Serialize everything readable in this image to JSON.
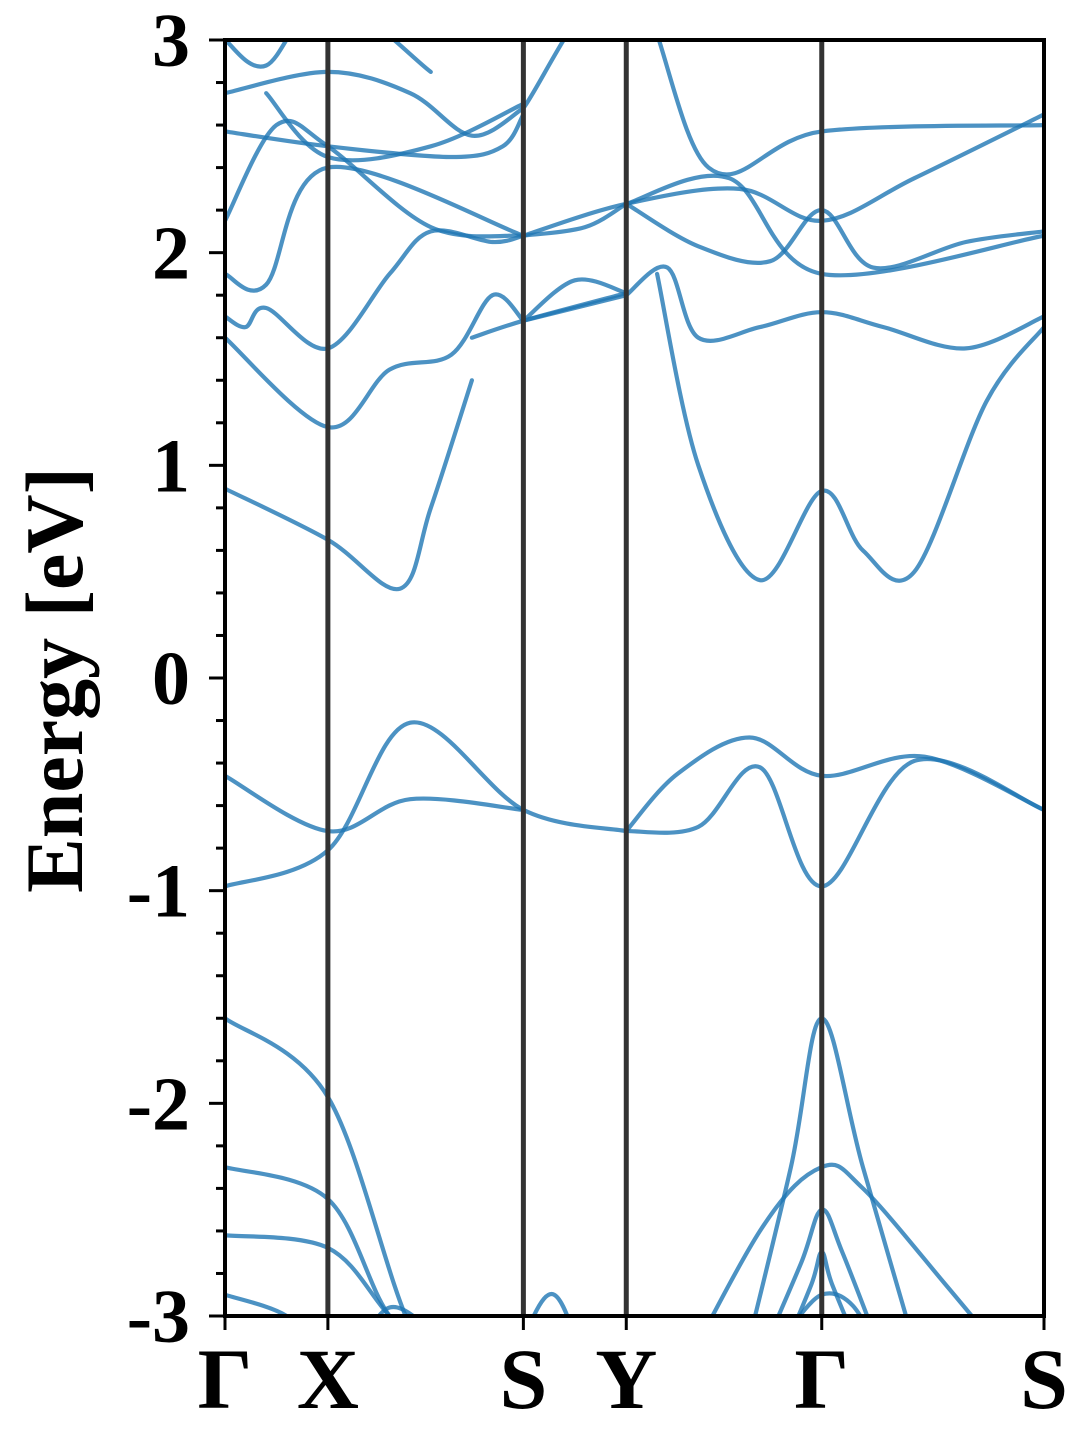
{
  "chart_data": {
    "type": "line",
    "ylabel": "Energy [eV]",
    "xlabel": "",
    "title": "",
    "ylim": [
      -3,
      3
    ],
    "yticks": [
      -3,
      -2,
      -1,
      0,
      1,
      2,
      3
    ],
    "ytick_labels": [
      "-3",
      "-2",
      "-1",
      "0",
      "1",
      "2",
      "3"
    ],
    "minor_ytick_step": 0.2,
    "kpath_labels": [
      "Γ",
      "X",
      "S",
      "Y",
      "Γ",
      "S"
    ],
    "kpath_positions": [
      0,
      0.5,
      1.45,
      1.95,
      2.9,
      3.98
    ],
    "grid": false,
    "legend": "none",
    "line_color": "#1f77b4",
    "vline_color": "#333333",
    "series": [
      {
        "x": [
          0,
          0.5,
          0.9,
          1.45
        ],
        "y": [
          -0.46,
          -0.72,
          -0.57,
          -0.62
        ]
      },
      {
        "x": [
          0,
          0.5,
          0.9,
          1.45,
          1.95
        ],
        "y": [
          -0.98,
          -0.81,
          -0.21,
          -0.62,
          -0.72
        ]
      },
      {
        "x": [
          1.95,
          2.2,
          2.55,
          2.9,
          3.4,
          3.98
        ],
        "y": [
          -0.72,
          -0.45,
          -0.28,
          -0.46,
          -0.37,
          -0.62
        ]
      },
      {
        "x": [
          1.95,
          2.3,
          2.6,
          2.9,
          3.35,
          3.98
        ],
        "y": [
          -0.72,
          -0.7,
          -0.42,
          -0.98,
          -0.39,
          -0.62
        ]
      },
      {
        "x": [
          0,
          0.5,
          0.8,
          1.1,
          1.4,
          1.5,
          1.6,
          1.7,
          1.8,
          2.0,
          2.2
        ],
        "y": [
          -2.3,
          -2.45,
          -3.0,
          -3.2,
          -3.3,
          -3.0,
          -2.9,
          -3.1,
          -3.5,
          -3.4,
          -3.2
        ]
      },
      {
        "x": [
          0,
          0.5,
          0.8,
          1.1,
          1.4
        ],
        "y": [
          -2.62,
          -2.68,
          -3.0,
          -3.3,
          -3.6
        ]
      },
      {
        "x": [
          0,
          0.3,
          0.5,
          0.9,
          1.1
        ],
        "y": [
          -2.9,
          -3.0,
          -3.2,
          -3.5,
          -3.7
        ]
      },
      {
        "x": [
          0.25,
          0.5,
          0.8,
          1.2
        ],
        "y": [
          -3.6,
          -3.5,
          -2.96,
          -3.3
        ]
      },
      {
        "x": [
          0,
          0.5,
          0.9,
          1.2,
          1.5
        ],
        "y": [
          -1.6,
          -1.97,
          -3.05,
          -3.4,
          -3.6
        ]
      },
      {
        "x": [
          2.5,
          2.75,
          2.9,
          3.1,
          3.4
        ],
        "y": [
          -3.3,
          -2.3,
          -1.6,
          -2.3,
          -3.3
        ]
      },
      {
        "x": [
          2.1,
          2.6,
          2.9,
          3.1,
          3.5,
          3.8
        ],
        "y": [
          -3.5,
          -2.6,
          -2.3,
          -2.4,
          -2.85,
          -3.2
        ]
      },
      {
        "x": [
          2.6,
          2.8,
          2.9,
          3.0,
          3.2
        ],
        "y": [
          -3.2,
          -2.75,
          -2.5,
          -2.7,
          -3.2
        ]
      },
      {
        "x": [
          2.7,
          2.85,
          2.9,
          2.95,
          3.1
        ],
        "y": [
          -3.2,
          -2.85,
          -2.7,
          -2.85,
          -3.2
        ]
      },
      {
        "x": [
          2.75,
          2.9,
          3.05,
          3.2
        ],
        "y": [
          -3.05,
          -2.9,
          -2.95,
          -3.2
        ]
      },
      {
        "x": [
          0,
          0.5,
          0.85,
          1.0,
          1.2
        ],
        "y": [
          0.89,
          0.65,
          0.42,
          0.8,
          1.4
        ]
      },
      {
        "x": [
          1.2,
          1.45,
          1.95
        ],
        "y": [
          1.6,
          1.68,
          1.81
        ]
      },
      {
        "x": [
          1.45,
          1.7,
          1.95
        ],
        "y": [
          1.68,
          1.87,
          1.81
        ]
      },
      {
        "x": [
          2.1,
          2.3,
          2.6,
          2.9,
          3.1,
          3.35,
          3.7,
          3.98
        ],
        "y": [
          1.9,
          1.0,
          0.46,
          0.88,
          0.6,
          0.5,
          1.3,
          1.65
        ]
      },
      {
        "x": [
          0,
          0.5,
          0.8,
          1.1,
          1.3,
          1.45
        ],
        "y": [
          1.6,
          1.18,
          1.45,
          1.52,
          1.8,
          1.68
        ]
      },
      {
        "x": [
          1.45,
          1.95
        ],
        "y": [
          1.68,
          1.8
        ]
      },
      {
        "x": [
          1.95,
          2.15,
          2.3,
          2.6,
          2.9,
          3.2,
          3.6,
          3.98
        ],
        "y": [
          1.8,
          1.93,
          1.6,
          1.65,
          1.72,
          1.65,
          1.55,
          1.7
        ]
      },
      {
        "x": [
          0,
          0.1,
          0.2,
          0.5,
          0.8,
          1.0,
          1.3,
          1.45
        ],
        "y": [
          1.7,
          1.65,
          1.74,
          1.55,
          1.9,
          2.1,
          2.05,
          2.08
        ]
      },
      {
        "x": [
          1.45,
          1.75,
          1.95
        ],
        "y": [
          2.08,
          2.12,
          2.23
        ]
      },
      {
        "x": [
          1.95,
          2.3,
          2.65,
          2.9,
          3.15,
          3.6,
          3.98
        ],
        "y": [
          2.23,
          2.03,
          1.96,
          2.2,
          1.93,
          2.05,
          2.1
        ]
      },
      {
        "x": [
          0,
          0.2,
          0.5,
          1.45
        ],
        "y": [
          1.9,
          1.85,
          2.4,
          2.08
        ]
      },
      {
        "x": [
          0,
          0.25,
          0.5,
          1.0,
          1.45
        ],
        "y": [
          2.15,
          2.6,
          2.5,
          2.12,
          2.08
        ]
      },
      {
        "x": [
          1.45,
          1.95,
          2.5,
          2.9,
          3.35,
          3.98
        ],
        "y": [
          2.08,
          2.23,
          2.3,
          2.15,
          2.35,
          2.65
        ]
      },
      {
        "x": [
          1.95,
          2.45,
          2.9,
          3.98
        ],
        "y": [
          2.23,
          2.35,
          1.9,
          2.08
        ]
      },
      {
        "x": [
          0,
          0.5,
          1.1,
          1.35,
          1.45
        ],
        "y": [
          2.57,
          2.5,
          2.45,
          2.5,
          2.65
        ]
      },
      {
        "x": [
          0,
          0.5,
          0.9,
          1.2,
          1.45
        ],
        "y": [
          2.75,
          2.85,
          2.75,
          2.55,
          2.68
        ]
      },
      {
        "x": [
          0.2,
          0.5,
          1.0,
          1.45
        ],
        "y": [
          2.75,
          2.45,
          2.5,
          2.7
        ]
      },
      {
        "x": [
          1.45,
          1.95,
          2.35,
          2.9,
          3.98
        ],
        "y": [
          2.68,
          3.3,
          2.4,
          2.57,
          2.6
        ]
      },
      {
        "x": [
          0,
          0.2,
          0.5,
          1.0
        ],
        "y": [
          3.0,
          2.88,
          3.2,
          2.85
        ]
      }
    ]
  }
}
